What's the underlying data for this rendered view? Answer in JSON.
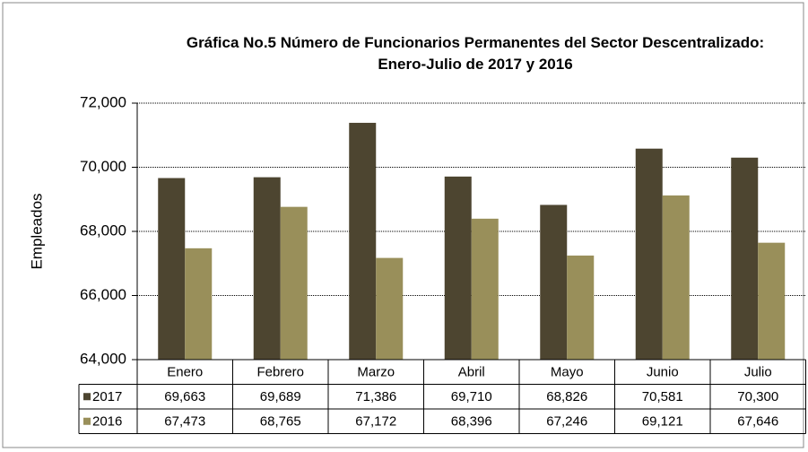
{
  "chart_data": {
    "type": "bar",
    "title": "Gráfica No.5 Número de Funcionarios Permanentes del Sector Descentralizado: Enero-Julio de 2017 y 2016",
    "ylabel": "Empleados",
    "categories": [
      "Enero",
      "Febrero",
      "Marzo",
      "Abril",
      "Mayo",
      "Junio",
      "Julio"
    ],
    "series": [
      {
        "name": "2017",
        "color": "#4d4530",
        "values": [
          69663,
          69689,
          71386,
          69710,
          68826,
          70581,
          70300
        ],
        "value_labels": [
          "69,663",
          "69,689",
          "71,386",
          "69,710",
          "68,826",
          "70,581",
          "70,300"
        ]
      },
      {
        "name": "2016",
        "color": "#998f5a",
        "values": [
          67473,
          68765,
          67172,
          68396,
          67246,
          69121,
          67646
        ],
        "value_labels": [
          "67,473",
          "68,765",
          "67,172",
          "68,396",
          "67,246",
          "69,121",
          "67,646"
        ]
      }
    ],
    "ylim": [
      64000,
      72000
    ],
    "yticks": [
      {
        "value": 64000,
        "label": "64,000"
      },
      {
        "value": 66000,
        "label": "66,000"
      },
      {
        "value": 68000,
        "label": "68,000"
      },
      {
        "value": 70000,
        "label": "70,000"
      },
      {
        "value": 72000,
        "label": "72,000"
      }
    ],
    "grid": true,
    "data_table": true
  }
}
